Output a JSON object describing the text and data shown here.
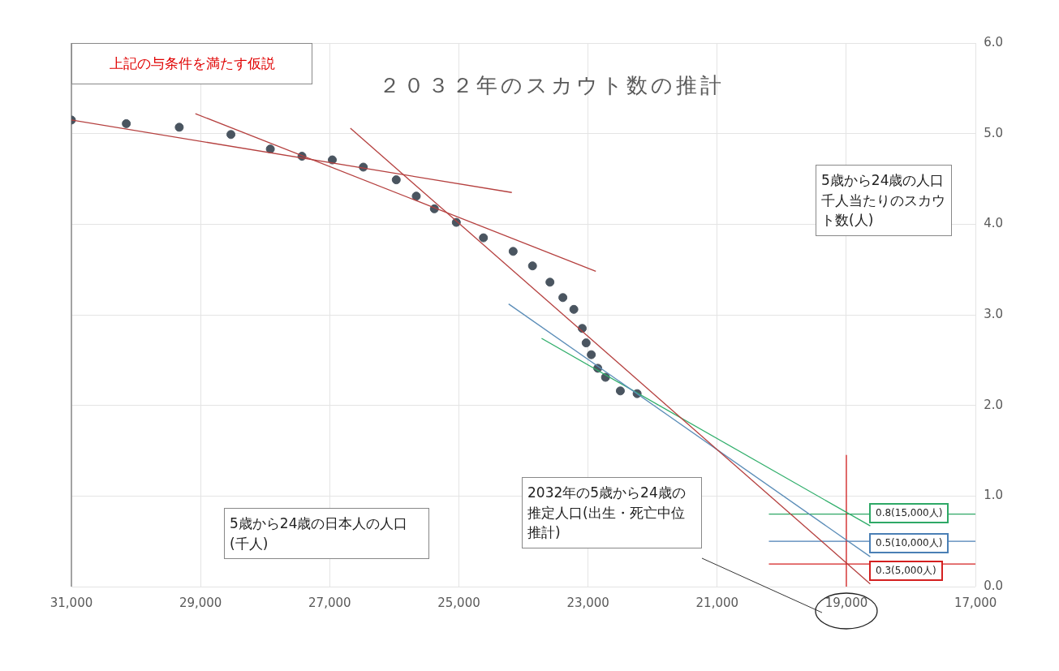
{
  "chart_data": {
    "type": "scatter",
    "title": "２０３２年のスカウト数の推計",
    "xlabel": "5歳から24歳の日本人の人口(千人)",
    "ylabel": "5歳から24歳の人口千人当たりのスカウト数(人)",
    "xlim": [
      31000,
      17000
    ],
    "xticks": [
      {
        "value": 31000,
        "label": "31,000"
      },
      {
        "value": 29000,
        "label": "29,000"
      },
      {
        "value": 27000,
        "label": "27,000"
      },
      {
        "value": 25000,
        "label": "25,000"
      },
      {
        "value": 23000,
        "label": "23,000"
      },
      {
        "value": 21000,
        "label": "21,000"
      },
      {
        "value": 19000,
        "label": "19,000"
      },
      {
        "value": 17000,
        "label": "17,000"
      }
    ],
    "ylim": [
      0,
      6
    ],
    "yticks": [
      {
        "value": 0,
        "label": "0.0"
      },
      {
        "value": 1,
        "label": "1.0"
      },
      {
        "value": 2,
        "label": "2.0"
      },
      {
        "value": 3,
        "label": "3.0"
      },
      {
        "value": 4,
        "label": "4.0"
      },
      {
        "value": 5,
        "label": "5.0"
      },
      {
        "value": 6,
        "label": "6.0"
      }
    ],
    "grid": true,
    "legend": false,
    "marker": "circle",
    "series": [
      {
        "type": "scatter",
        "color": "#4a5560",
        "x": [
          31000,
          30150,
          29330,
          28530,
          27920,
          27430,
          26960,
          26480,
          25970,
          25660,
          25380,
          25040,
          24620,
          24160,
          23860,
          23590,
          23390,
          23220,
          23090,
          23030,
          22950,
          22850,
          22730,
          22500,
          22240
        ],
        "values": [
          5.15,
          5.11,
          5.07,
          4.99,
          4.83,
          4.75,
          4.71,
          4.63,
          4.49,
          4.31,
          4.17,
          4.02,
          3.85,
          3.7,
          3.54,
          3.36,
          3.19,
          3.06,
          2.85,
          2.69,
          2.56,
          2.41,
          2.31,
          2.16,
          2.13
        ]
      },
      {
        "type": "line",
        "color": "#b5403f",
        "marker": "none",
        "x": [
          31000,
          24180
        ],
        "values": [
          5.15,
          4.35
        ]
      },
      {
        "type": "line",
        "color": "#b5403f",
        "marker": "none",
        "x": [
          29080,
          22880
        ],
        "values": [
          5.22,
          3.48
        ]
      },
      {
        "type": "line",
        "color": "#b5403f",
        "marker": "none",
        "x": [
          26680,
          18630
        ],
        "values": [
          5.06,
          0.03
        ]
      },
      {
        "type": "line",
        "color": "#5b8db8",
        "marker": "none",
        "x": [
          24230,
          18630
        ],
        "values": [
          3.12,
          0.33
        ]
      },
      {
        "type": "line",
        "color": "#2fae6a",
        "marker": "none",
        "x": [
          23720,
          18630
        ],
        "values": [
          2.74,
          0.67
        ]
      },
      {
        "type": "line",
        "color": "#d42020",
        "marker": "none",
        "x": [
          19000,
          19000
        ],
        "values": [
          1.45,
          0
        ]
      },
      {
        "type": "line",
        "color": "#2ea866",
        "marker": "none",
        "x": [
          20200,
          17000
        ],
        "values": [
          0.8,
          0.8
        ]
      },
      {
        "type": "line",
        "color": "#4a7fb5",
        "marker": "none",
        "x": [
          20200,
          17000
        ],
        "values": [
          0.5,
          0.5
        ]
      },
      {
        "type": "line",
        "color": "#d42020",
        "marker": "none",
        "x": [
          20200,
          17000
        ],
        "values": [
          0.25,
          0.25
        ]
      }
    ],
    "annotations": [
      "上記の与条件を満たす仮説",
      "2032年の5歳から24歳の推定人口(出生・死亡中位推計)",
      "0.8(15,000人)",
      "0.5(10,000人)",
      "0.3(5,000人)"
    ]
  }
}
